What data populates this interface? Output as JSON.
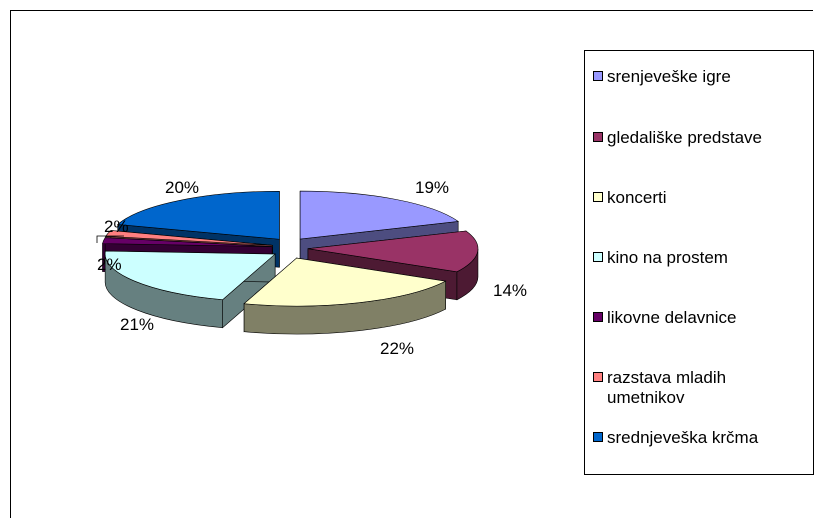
{
  "chart_data": {
    "type": "pie",
    "title": "",
    "slices": [
      {
        "label": "srenjeveške igre",
        "value": 19,
        "display": "19%",
        "color": "#9999FF",
        "side_color": "#4D4D80"
      },
      {
        "label": "gledališke predstave",
        "value": 14,
        "display": "14%",
        "color": "#993366",
        "side_color": "#4D1A33"
      },
      {
        "label": "koncerti",
        "value": 22,
        "display": "22%",
        "color": "#FFFFCC",
        "side_color": "#808066"
      },
      {
        "label": "kino na prostem",
        "value": 21,
        "display": "21%",
        "color": "#CCFFFF",
        "side_color": "#668080"
      },
      {
        "label": "likovne delavnice",
        "value": 2,
        "display": "2%",
        "color": "#660066",
        "side_color": "#330033"
      },
      {
        "label": "razstava mladih umetnikov",
        "value": 2,
        "display": "2%",
        "color": "#FF8080",
        "side_color": "#804040"
      },
      {
        "label": "srednjeveška krčma",
        "value": 20,
        "display": "20%",
        "color": "#0066CC",
        "side_color": "#003366"
      }
    ],
    "legend_position": "right",
    "style": "3d-exploded"
  }
}
